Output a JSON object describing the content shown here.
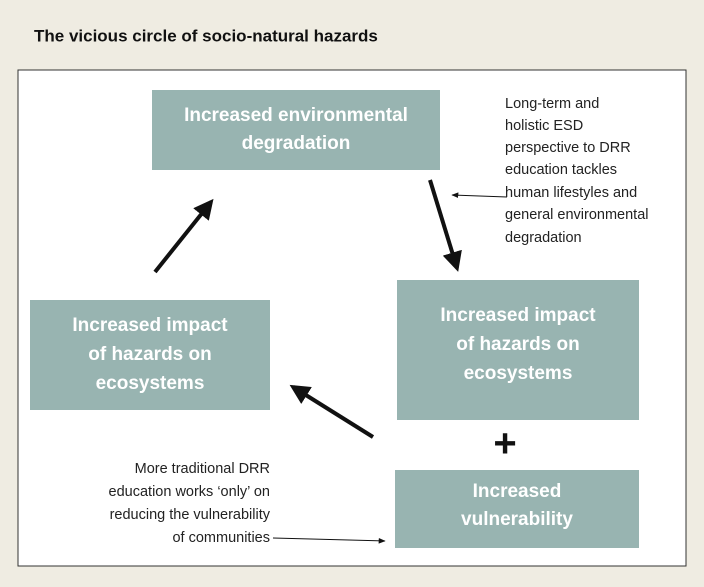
{
  "title": "The vicious circle of socio-natural hazards",
  "nodes": [
    {
      "lines": [
        "Increased environmental",
        "degradation"
      ]
    },
    {
      "lines": [
        "Increased impact",
        "of hazards on",
        "ecosystems"
      ]
    },
    {
      "lines": [
        "Increased impact",
        "of hazards on",
        "ecosystems"
      ]
    },
    {
      "lines": [
        "Increased",
        "vulnerability"
      ]
    }
  ],
  "plus": "+",
  "annotations": [
    {
      "lines": [
        "Long-term and",
        "holistic ESD",
        "perspective to DRR",
        "education tackles",
        "human lifestyles and",
        "general environmental",
        "degradation"
      ]
    },
    {
      "lines": [
        "More traditional DRR",
        "education works ‘only’ on",
        "reducing the vulnerability",
        "of communities"
      ]
    }
  ]
}
